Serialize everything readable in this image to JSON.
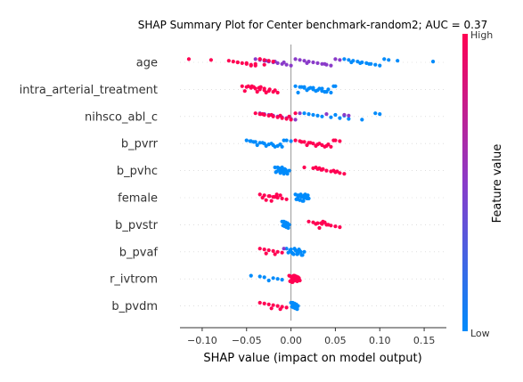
{
  "chart_data": {
    "type": "scatter",
    "title": "SHAP Summary Plot for Center benchmark-random2; AUC = 0.37",
    "xlabel": "SHAP value (impact on model output)",
    "xlim": [
      -0.125,
      0.175
    ],
    "x_ticks": [
      "−0.10",
      "−0.05",
      "0.00",
      "0.05",
      "0.10",
      "0.15"
    ],
    "x_tick_values": [
      -0.1,
      -0.05,
      0.0,
      0.05,
      0.1,
      0.15
    ],
    "colorbar": {
      "label": "Feature value",
      "high": "High",
      "low": "Low"
    },
    "colors": {
      "low": "#008bfb",
      "high": "#ff0052",
      "zero_line": "#999999"
    },
    "features": [
      "age",
      "intra_arterial_treatment",
      "nihsco_abl_c",
      "b_pvrr",
      "b_pvhc",
      "female",
      "b_pvstr",
      "b_pvaf",
      "r_ivtrom",
      "b_pvdm"
    ],
    "series": [
      {
        "feature": "age",
        "low_x": [
          0.06,
          0.065,
          0.07,
          0.075,
          0.08,
          0.085,
          0.09,
          0.095,
          0.1,
          0.105,
          0.11,
          0.12,
          0.16,
          0.068,
          0.078,
          0.088
        ],
        "mid_x": [
          -0.04,
          -0.035,
          -0.03,
          -0.025,
          -0.02,
          -0.015,
          -0.01,
          -0.005,
          0.0,
          0.005,
          0.01,
          0.015,
          0.02,
          0.025,
          0.03,
          0.035,
          0.04,
          0.045,
          0.05,
          0.055,
          -0.028,
          -0.018,
          -0.008,
          0.018,
          0.038
        ],
        "high_x": [
          -0.115,
          -0.09,
          -0.07,
          -0.065,
          -0.06,
          -0.055,
          -0.05,
          -0.045,
          -0.04,
          -0.035,
          -0.03,
          -0.025,
          -0.02,
          -0.06,
          -0.05,
          -0.04,
          -0.03,
          -0.045,
          -0.035
        ]
      },
      {
        "feature": "intra_arterial_treatment",
        "low_x": [
          0.005,
          0.01,
          0.015,
          0.02,
          0.025,
          0.03,
          0.035,
          0.04,
          0.045,
          0.05,
          0.012,
          0.022,
          0.032,
          0.042,
          0.018,
          0.028,
          0.038,
          0.008,
          0.048,
          0.015,
          0.025,
          0.035
        ],
        "mid_x": [],
        "high_x": [
          -0.055,
          -0.05,
          -0.045,
          -0.04,
          -0.035,
          -0.03,
          -0.025,
          -0.02,
          -0.015,
          -0.048,
          -0.042,
          -0.036,
          -0.03,
          -0.024,
          -0.018,
          -0.052,
          -0.038,
          -0.028,
          -0.044,
          -0.034
        ]
      },
      {
        "feature": "nihsco_abl_c",
        "low_x": [
          0.015,
          0.02,
          0.025,
          0.03,
          0.035,
          0.045,
          0.055,
          0.065,
          0.08,
          0.095,
          0.1,
          0.05,
          0.06
        ],
        "mid_x": [
          -0.035,
          -0.03,
          -0.025,
          -0.02,
          -0.015,
          -0.01,
          -0.005,
          0.0,
          0.005,
          0.01,
          0.04,
          0.06,
          0.065
        ],
        "high_x": [
          -0.04,
          -0.035,
          -0.03,
          -0.025,
          -0.02,
          -0.015,
          -0.01,
          -0.005,
          0.0,
          0.005,
          -0.032,
          -0.022,
          -0.012,
          -0.002
        ]
      },
      {
        "feature": "b_pvrr",
        "low_x": [
          -0.05,
          -0.045,
          -0.04,
          -0.035,
          -0.03,
          -0.025,
          -0.02,
          -0.015,
          -0.01,
          -0.005,
          0.0,
          -0.042,
          -0.032,
          -0.022,
          -0.012,
          -0.038,
          -0.028,
          -0.018,
          -0.008,
          -0.046
        ],
        "mid_x": [],
        "high_x": [
          0.005,
          0.01,
          0.015,
          0.02,
          0.025,
          0.03,
          0.035,
          0.04,
          0.045,
          0.05,
          0.055,
          0.012,
          0.022,
          0.032,
          0.042,
          0.018,
          0.028,
          0.038,
          0.048
        ]
      },
      {
        "feature": "b_pvhc",
        "low_x": [
          -0.018,
          -0.014,
          -0.01,
          -0.006,
          -0.002,
          -0.016,
          -0.012,
          -0.008,
          -0.004,
          -0.015,
          -0.011,
          -0.007,
          -0.013,
          -0.009,
          -0.005,
          -0.017,
          -0.012,
          -0.008,
          -0.01,
          -0.014
        ],
        "mid_x": [],
        "high_x": [
          0.015,
          0.025,
          0.03,
          0.035,
          0.04,
          0.045,
          0.05,
          0.055,
          0.06,
          0.028,
          0.032,
          0.036,
          0.034,
          0.048,
          0.052
        ]
      },
      {
        "feature": "female",
        "low_x": [
          0.005,
          0.008,
          0.011,
          0.014,
          0.017,
          0.02,
          0.007,
          0.01,
          0.013,
          0.016,
          0.019,
          0.009,
          0.012,
          0.015,
          0.018,
          0.006,
          0.01,
          0.014,
          0.011,
          0.015,
          0.012,
          0.008,
          0.016
        ],
        "mid_x": [],
        "high_x": [
          -0.035,
          -0.03,
          -0.025,
          -0.02,
          -0.015,
          -0.01,
          -0.005,
          -0.028,
          -0.022,
          -0.016,
          -0.012,
          -0.024,
          -0.018,
          -0.032
        ]
      },
      {
        "feature": "b_pvstr",
        "low_x": [
          -0.01,
          -0.008,
          -0.006,
          -0.004,
          -0.002,
          -0.009,
          -0.007,
          -0.005,
          -0.003,
          -0.008,
          -0.006,
          -0.004,
          -0.007,
          -0.005
        ],
        "mid_x": [],
        "high_x": [
          0.02,
          0.025,
          0.03,
          0.035,
          0.04,
          0.045,
          0.05,
          0.055,
          0.032,
          0.036,
          0.038,
          0.034,
          0.028,
          0.042
        ]
      },
      {
        "feature": "b_pvaf",
        "low_x": [
          -0.005,
          0.0,
          0.005,
          0.01,
          0.015,
          -0.003,
          0.002,
          0.007,
          0.012,
          0.004,
          0.009,
          -0.001,
          0.006,
          0.011,
          0.001,
          0.008,
          0.003,
          0.013
        ],
        "mid_x": [
          -0.008
        ],
        "high_x": [
          -0.035,
          -0.03,
          -0.025,
          -0.02,
          -0.015,
          -0.01,
          -0.028,
          -0.018
        ]
      },
      {
        "feature": "r_ivtrom",
        "low_x": [
          -0.045,
          -0.035,
          -0.03,
          -0.02,
          -0.015,
          -0.01,
          -0.025
        ],
        "mid_x": [],
        "high_x": [
          -0.002,
          0.0,
          0.002,
          0.004,
          0.006,
          0.008,
          0.01,
          -0.001,
          0.001,
          0.003,
          0.005,
          0.007,
          0.009,
          0.001,
          0.003,
          0.005,
          0.007,
          0.002,
          0.004,
          0.006,
          0.008
        ]
      },
      {
        "feature": "b_pvdm",
        "low_x": [
          0.0,
          0.002,
          0.004,
          0.006,
          0.008,
          0.001,
          0.003,
          0.005,
          0.007,
          0.002,
          0.004,
          0.006,
          0.003,
          0.005
        ],
        "mid_x": [],
        "high_x": [
          -0.035,
          -0.03,
          -0.025,
          -0.02,
          -0.015,
          -0.01,
          -0.005,
          -0.022,
          -0.012
        ]
      }
    ]
  }
}
